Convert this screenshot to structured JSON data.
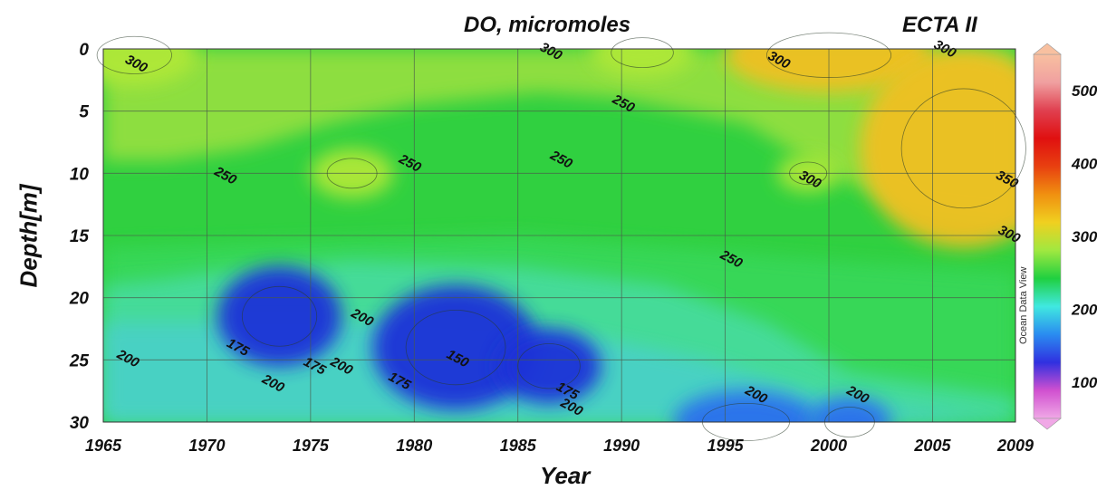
{
  "chart_data": {
    "type": "heatmap",
    "title": "DO, micromoles",
    "tag": "ECTA II",
    "xlabel": "Year",
    "ylabel": "Depth[m]",
    "x_ticks": [
      "1965",
      "1970",
      "1975",
      "1980",
      "1985",
      "1990",
      "1995",
      "2000",
      "2005",
      "2009"
    ],
    "y_ticks": [
      "0",
      "5",
      "10",
      "15",
      "20",
      "25",
      "30"
    ],
    "xlim": [
      1965,
      2009
    ],
    "ylim": [
      0,
      30
    ],
    "y_inverted": true,
    "grid": true,
    "colorbar": {
      "ticks": [
        "500",
        "400",
        "300",
        "200",
        "100"
      ],
      "tick_values": [
        500,
        400,
        300,
        200,
        100
      ],
      "range": [
        50,
        550
      ],
      "colors": [
        "#f0a8e6",
        "#d050d0",
        "#3030e0",
        "#2a8cf0",
        "#40e8e0",
        "#20d040",
        "#a0e840",
        "#f0d020",
        "#f09010",
        "#e84010",
        "#e01010",
        "#e04050",
        "#f0a0a0",
        "#f8c0a0"
      ]
    },
    "contours": [
      {
        "label": "300",
        "x": 1966.5,
        "y": 1.5
      },
      {
        "label": "300",
        "x": 1986.5,
        "y": 0.5
      },
      {
        "label": "300",
        "x": 1997.5,
        "y": 1.2
      },
      {
        "label": "300",
        "x": 2005.5,
        "y": 0.3
      },
      {
        "label": "300",
        "x": 1999,
        "y": 10.8
      },
      {
        "label": "350",
        "x": 2008.5,
        "y": 10.8
      },
      {
        "label": "300",
        "x": 2008.6,
        "y": 15.2
      },
      {
        "label": "250",
        "x": 1990,
        "y": 4.7
      },
      {
        "label": "250",
        "x": 1970.8,
        "y": 10.5
      },
      {
        "label": "250",
        "x": 1979.7,
        "y": 9.5
      },
      {
        "label": "250",
        "x": 1987,
        "y": 9.2
      },
      {
        "label": "250",
        "x": 1995.2,
        "y": 17.2
      },
      {
        "label": "200",
        "x": 1966.1,
        "y": 25.2
      },
      {
        "label": "175",
        "x": 1971.4,
        "y": 24.3
      },
      {
        "label": "200",
        "x": 1973.1,
        "y": 27.2
      },
      {
        "label": "175",
        "x": 1975.1,
        "y": 25.8
      },
      {
        "label": "200",
        "x": 1976.4,
        "y": 25.8
      },
      {
        "label": "200",
        "x": 1977.4,
        "y": 21.9
      },
      {
        "label": "175",
        "x": 1979.2,
        "y": 27.0
      },
      {
        "label": "150",
        "x": 1982,
        "y": 25.2
      },
      {
        "label": "175",
        "x": 1987.3,
        "y": 27.8
      },
      {
        "label": "200",
        "x": 1987.5,
        "y": 29.1
      },
      {
        "label": "200",
        "x": 1996.4,
        "y": 28.1
      },
      {
        "label": "200",
        "x": 2001.3,
        "y": 28.1
      }
    ],
    "features": [
      {
        "kind": "high",
        "level": "300",
        "x": 1966.5,
        "y": 0.5,
        "rx": 3,
        "ry": 2.5
      },
      {
        "kind": "high",
        "level": "300",
        "x": 1991,
        "y": 0.3,
        "rx": 2.5,
        "ry": 2
      },
      {
        "kind": "high",
        "level": "330",
        "x": 2000,
        "y": 0.5,
        "rx": 5,
        "ry": 3
      },
      {
        "kind": "high",
        "level": "340",
        "x": 2006.5,
        "y": 8,
        "rx": 5,
        "ry": 8
      },
      {
        "kind": "high",
        "level": "300",
        "x": 1977,
        "y": 10,
        "rx": 2,
        "ry": 2
      },
      {
        "kind": "high",
        "level": "300",
        "x": 1999,
        "y": 10,
        "rx": 1.5,
        "ry": 1.5
      },
      {
        "kind": "low",
        "level": "170",
        "x": 1973.5,
        "y": 21.5,
        "rx": 3,
        "ry": 4
      },
      {
        "kind": "low",
        "level": "150",
        "x": 1982,
        "y": 24,
        "rx": 4,
        "ry": 5
      },
      {
        "kind": "low",
        "level": "165",
        "x": 1986.5,
        "y": 25.5,
        "rx": 2.5,
        "ry": 3
      },
      {
        "kind": "low",
        "level": "185",
        "x": 1996,
        "y": 30,
        "rx": 3.5,
        "ry": 2.5
      },
      {
        "kind": "low",
        "level": "190",
        "x": 2001,
        "y": 30,
        "rx": 2,
        "ry": 2
      }
    ]
  },
  "watermark": "Ocean Data View"
}
